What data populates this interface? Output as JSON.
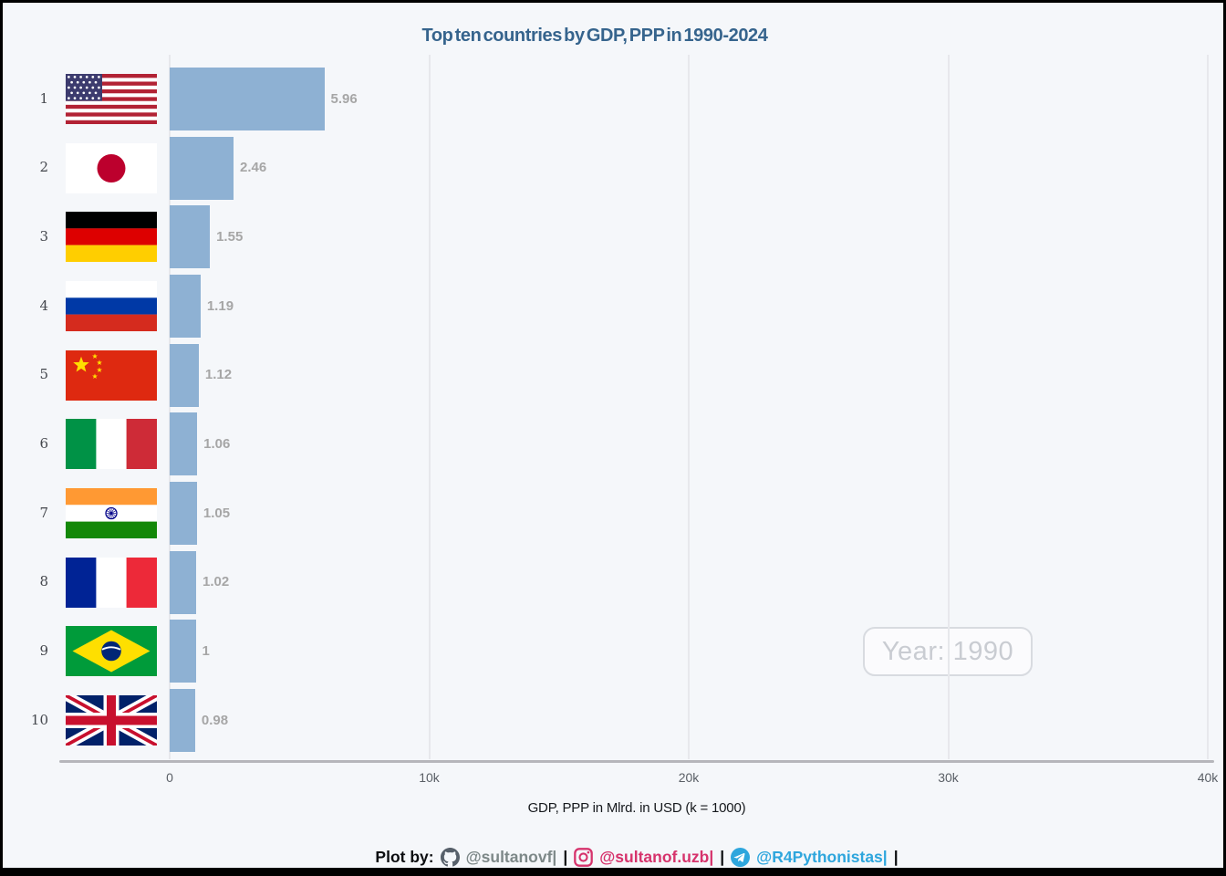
{
  "title": "Top ten countries by GDP, PPP in 1990-2024",
  "chart_data": {
    "type": "bar",
    "orientation": "horizontal",
    "title": "Top ten countries by GDP, PPP in 1990-2024",
    "xlabel": "GDP, PPP in Mlrd. in USD (k = 1000)",
    "year_label": "Year: 1990",
    "grid": true,
    "legend": false,
    "x_axis": {
      "min_k": 0,
      "max_k": 40,
      "ticks": [
        {
          "value_k": 0,
          "label": "0"
        },
        {
          "value_k": 10,
          "label": "10k"
        },
        {
          "value_k": 20,
          "label": "20k"
        },
        {
          "value_k": 30,
          "label": "30k"
        },
        {
          "value_k": 40,
          "label": "40k"
        }
      ]
    },
    "rows": [
      {
        "rank": "1",
        "country": "United States",
        "flag": "us",
        "value_k": 5.96,
        "value_label": "5.96",
        "value_billions_usd": 5960
      },
      {
        "rank": "2",
        "country": "Japan",
        "flag": "jp",
        "value_k": 2.46,
        "value_label": "2.46",
        "value_billions_usd": 2460
      },
      {
        "rank": "3",
        "country": "Germany",
        "flag": "de",
        "value_k": 1.55,
        "value_label": "1.55",
        "value_billions_usd": 1550
      },
      {
        "rank": "4",
        "country": "Russia",
        "flag": "ru",
        "value_k": 1.19,
        "value_label": "1.19",
        "value_billions_usd": 1190
      },
      {
        "rank": "5",
        "country": "China",
        "flag": "cn",
        "value_k": 1.12,
        "value_label": "1.12",
        "value_billions_usd": 1120
      },
      {
        "rank": "6",
        "country": "Italy",
        "flag": "it",
        "value_k": 1.06,
        "value_label": "1.06",
        "value_billions_usd": 1060
      },
      {
        "rank": "7",
        "country": "India",
        "flag": "in",
        "value_k": 1.05,
        "value_label": "1.05",
        "value_billions_usd": 1050
      },
      {
        "rank": "8",
        "country": "France",
        "flag": "fr",
        "value_k": 1.02,
        "value_label": "1.02",
        "value_billions_usd": 1020
      },
      {
        "rank": "9",
        "country": "Brazil",
        "flag": "br",
        "value_k": 1.0,
        "value_label": "1",
        "value_billions_usd": 1000
      },
      {
        "rank": "10",
        "country": "United Kingdom",
        "flag": "gb",
        "value_k": 0.98,
        "value_label": "0.98",
        "value_billions_usd": 980
      }
    ],
    "bar_color": "#8eb1d3",
    "value_label_color": "#a6a6a6"
  },
  "footer": {
    "prefix": "Plot by:",
    "separator": "|",
    "github": {
      "icon": "github-icon",
      "handle": "@sultanovf|",
      "color": "#7d8888"
    },
    "instagram": {
      "icon": "instagram-icon",
      "handle": "@sultanof.uzb|",
      "color": "#d6336c"
    },
    "telegram": {
      "icon": "telegram-icon",
      "handle": "@R4Pythonistas|",
      "color": "#2ea6dd"
    }
  },
  "colors": {
    "background": "#f5f7fa",
    "frame_border": "#000000",
    "title": "#36648D",
    "gridline": "#e7e8ec",
    "axis_line": "#b6b6bb",
    "tick_label": "#5a5f66",
    "rank_label": "#44474d",
    "year_badge_text": "#c9ccd2",
    "year_badge_border": "#d8dbe0"
  }
}
